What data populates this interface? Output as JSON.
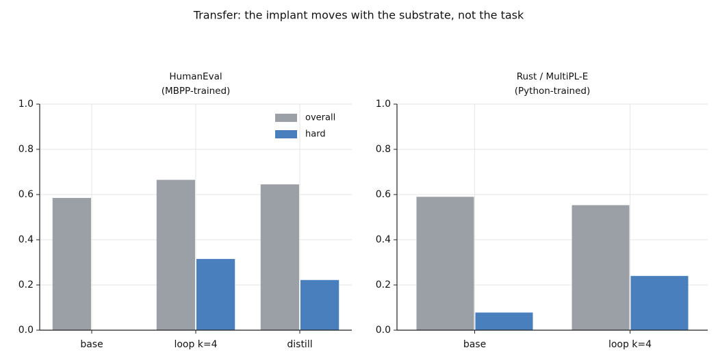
{
  "title": "Transfer: the implant moves with the substrate, not the task",
  "chart_data": [
    {
      "type": "bar",
      "title": [
        "HumanEval",
        "(MBPP-trained)"
      ],
      "categories": [
        "base",
        "loop k=4",
        "distill"
      ],
      "series": [
        {
          "name": "overall",
          "color": "#9aa0a6",
          "values": [
            0.585,
            0.665,
            0.645
          ]
        },
        {
          "name": "hard",
          "color": "#4a7fbd",
          "values": [
            null,
            0.315,
            0.222
          ]
        }
      ],
      "ylim": [
        0,
        1
      ],
      "yticks": [
        {
          "value": 0,
          "label": "0.0"
        },
        0.2,
        0.4,
        0.6,
        0.8,
        {
          "value": 1,
          "label": "1.0"
        }
      ],
      "grid": true,
      "legend": "upper right"
    },
    {
      "type": "bar",
      "title": [
        "Rust / MultiPL-E",
        "(Python-trained)"
      ],
      "categories": [
        "base",
        "loop k=4"
      ],
      "series": [
        {
          "name": "overall",
          "color": "#9aa0a6",
          "values": [
            0.59,
            0.553
          ]
        },
        {
          "name": "hard",
          "color": "#4a7fbd",
          "values": [
            0.078,
            0.24
          ]
        }
      ],
      "ylim": [
        0,
        1
      ],
      "yticks": [
        {
          "value": 0,
          "label": "0.0"
        },
        0.2,
        0.4,
        0.6,
        0.8,
        {
          "value": 1,
          "label": "1.0"
        }
      ],
      "grid": true
    }
  ]
}
